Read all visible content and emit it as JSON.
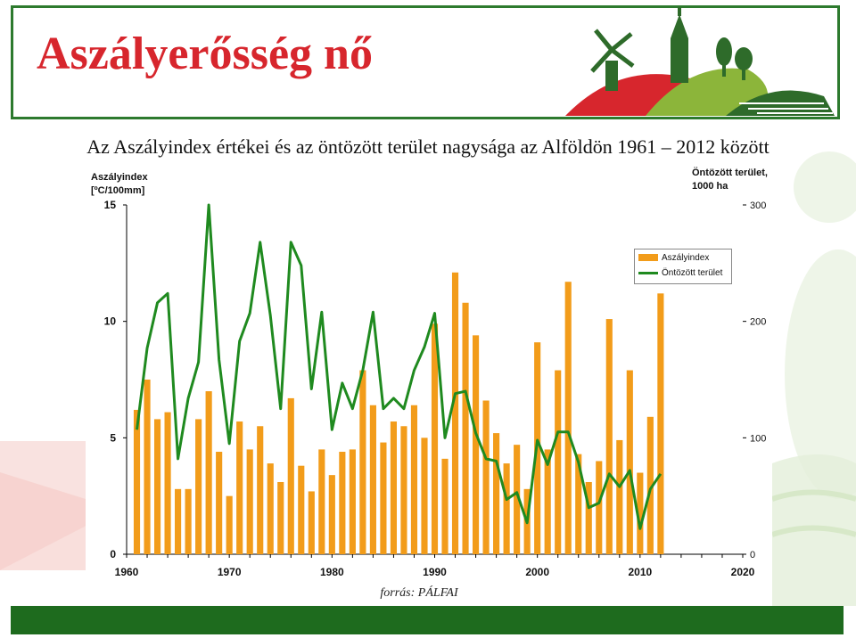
{
  "slide": {
    "title": "Aszályerősség nő",
    "subtitle": "Az Aszályindex értékei és az öntözött terület nagysága az Alföldön  1961 – 2012 között",
    "source": "forrás: PÁLFAI"
  },
  "logo": {
    "icon": "village-hills-logo-icon"
  },
  "colors": {
    "bar": "#f29c1a",
    "line": "#1f8a1f",
    "title": "#d7262d",
    "frame": "#2d7a2e",
    "footer": "#1e6b1e"
  },
  "chart_data": {
    "type": "bar+line",
    "left_axis_title": [
      "Aszályindex",
      "[ºC/100mm]"
    ],
    "right_axis_title": [
      "Öntözött terület,",
      "1000 ha"
    ],
    "xlim": [
      1960,
      2020
    ],
    "x_ticks": [
      "1960",
      "1970",
      "1980",
      "1990",
      "2000",
      "2010",
      "2020"
    ],
    "ylim_left": [
      0,
      15
    ],
    "y_ticks_left": [
      "0",
      "5",
      "10",
      "15"
    ],
    "ylim_right": [
      0,
      300
    ],
    "y_ticks_right": [
      "0",
      "100",
      "200",
      "300"
    ],
    "legend": [
      "Aszályindex",
      "Öntözött terület"
    ],
    "legend_position": "right",
    "years": [
      1961,
      1962,
      1963,
      1964,
      1965,
      1966,
      1967,
      1968,
      1969,
      1970,
      1971,
      1972,
      1973,
      1974,
      1975,
      1976,
      1977,
      1978,
      1979,
      1980,
      1981,
      1982,
      1983,
      1984,
      1985,
      1986,
      1987,
      1988,
      1989,
      1990,
      1991,
      1992,
      1993,
      1994,
      1995,
      1996,
      1997,
      1998,
      1999,
      2000,
      2001,
      2002,
      2003,
      2004,
      2005,
      2006,
      2007,
      2008,
      2009,
      2010,
      2011,
      2012
    ],
    "series": [
      {
        "name": "Aszályindex",
        "type": "bar",
        "values": [
          6.2,
          7.5,
          5.8,
          6.1,
          2.8,
          2.8,
          5.8,
          7.0,
          4.4,
          2.5,
          5.7,
          4.5,
          5.5,
          3.9,
          3.1,
          6.7,
          3.8,
          2.7,
          4.5,
          3.4,
          4.4,
          4.5,
          7.9,
          6.4,
          4.8,
          5.7,
          5.5,
          6.4,
          5.0,
          9.9,
          4.1,
          12.1,
          10.8,
          9.4,
          6.6,
          5.2,
          3.9,
          4.7,
          2.8,
          9.1,
          4.5,
          7.9,
          11.7,
          4.3,
          3.1,
          4.0,
          10.1,
          4.9,
          7.9,
          3.5,
          5.9,
          11.2
        ]
      },
      {
        "name": "Öntözött terület",
        "type": "line",
        "values": [
          107,
          177,
          216,
          224,
          82,
          134,
          165,
          300,
          167,
          95,
          183,
          207,
          268,
          205,
          125,
          268,
          248,
          142,
          208,
          107,
          147,
          125,
          158,
          208,
          125,
          134,
          125,
          158,
          178,
          207,
          100,
          138,
          140,
          104,
          82,
          80,
          47,
          53,
          27,
          98,
          77,
          105,
          105,
          79,
          40,
          44,
          69,
          58,
          72,
          22,
          56,
          69
        ]
      }
    ]
  }
}
